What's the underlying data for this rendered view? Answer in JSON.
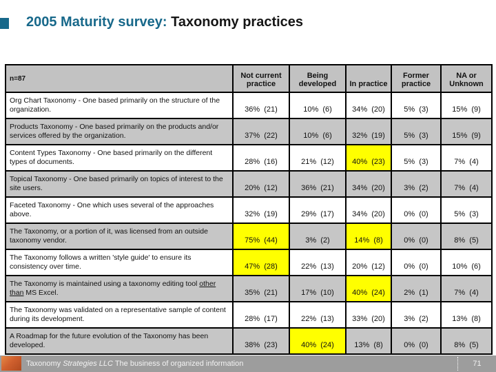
{
  "colors": {
    "accent_teal": "#17688a",
    "header_gray": "#c2c2c2",
    "row_gray": "#c6c6c6",
    "hl_yellow": "#ffff00",
    "footer_gray": "#9d9d9d",
    "logo_orange": "#d0602e"
  },
  "title": {
    "highlight": "2005 Maturity survey:",
    "rest": " Taxonomy practices"
  },
  "table": {
    "corner_label": "n=87",
    "columns": [
      "Not current practice",
      "Being developed",
      "In practice",
      "Former practice",
      "NA or Unknown"
    ],
    "rows": [
      {
        "question": "Org Chart Taxonomy - One based primarily on the structure of the organization.",
        "cells": [
          {
            "pct": 36,
            "n": 21,
            "hl": false
          },
          {
            "pct": 10,
            "n": 6,
            "hl": false
          },
          {
            "pct": 34,
            "n": 20,
            "hl": false
          },
          {
            "pct": 5,
            "n": 3,
            "hl": false
          },
          {
            "pct": 15,
            "n": 9,
            "hl": false
          }
        ]
      },
      {
        "question": "Products Taxonomy - One based primarily on the products and/or services offered by the organization.",
        "cells": [
          {
            "pct": 37,
            "n": 22,
            "hl": false
          },
          {
            "pct": 10,
            "n": 6,
            "hl": false
          },
          {
            "pct": 32,
            "n": 19,
            "hl": false
          },
          {
            "pct": 5,
            "n": 3,
            "hl": false
          },
          {
            "pct": 15,
            "n": 9,
            "hl": false
          }
        ]
      },
      {
        "question": "Content Types Taxonomy - One based primarily on the different types of documents.",
        "cells": [
          {
            "pct": 28,
            "n": 16,
            "hl": false
          },
          {
            "pct": 21,
            "n": 12,
            "hl": false
          },
          {
            "pct": 40,
            "n": 23,
            "hl": true
          },
          {
            "pct": 5,
            "n": 3,
            "hl": false
          },
          {
            "pct": 7,
            "n": 4,
            "hl": false
          }
        ]
      },
      {
        "question": "Topical Taxonomy - One based primarily on topics of interest to the site users.",
        "cells": [
          {
            "pct": 20,
            "n": 12,
            "hl": false
          },
          {
            "pct": 36,
            "n": 21,
            "hl": false
          },
          {
            "pct": 34,
            "n": 20,
            "hl": false
          },
          {
            "pct": 3,
            "n": 2,
            "hl": false
          },
          {
            "pct": 7,
            "n": 4,
            "hl": false
          }
        ]
      },
      {
        "question": "Faceted Taxonomy - One which uses several of the approaches above.",
        "cells": [
          {
            "pct": 32,
            "n": 19,
            "hl": false
          },
          {
            "pct": 29,
            "n": 17,
            "hl": false
          },
          {
            "pct": 34,
            "n": 20,
            "hl": false
          },
          {
            "pct": 0,
            "n": 0,
            "hl": false
          },
          {
            "pct": 5,
            "n": 3,
            "hl": false
          }
        ]
      },
      {
        "question": "The Taxonomy, or a portion of it, was licensed from an outside taxonomy vendor.",
        "cells": [
          {
            "pct": 75,
            "n": 44,
            "hl": true
          },
          {
            "pct": 3,
            "n": 2,
            "hl": false
          },
          {
            "pct": 14,
            "n": 8,
            "hl": true
          },
          {
            "pct": 0,
            "n": 0,
            "hl": false
          },
          {
            "pct": 8,
            "n": 5,
            "hl": false
          }
        ]
      },
      {
        "question": "The Taxonomy follows a written 'style guide' to ensure its consistency over time.",
        "cells": [
          {
            "pct": 47,
            "n": 28,
            "hl": true
          },
          {
            "pct": 22,
            "n": 13,
            "hl": false
          },
          {
            "pct": 20,
            "n": 12,
            "hl": false
          },
          {
            "pct": 0,
            "n": 0,
            "hl": false
          },
          {
            "pct": 10,
            "n": 6,
            "hl": false
          }
        ]
      },
      {
        "question": "The Taxonomy is maintained using a taxonomy editing tool other than MS Excel.",
        "underline": "other than",
        "cells": [
          {
            "pct": 35,
            "n": 21,
            "hl": false
          },
          {
            "pct": 17,
            "n": 10,
            "hl": false
          },
          {
            "pct": 40,
            "n": 24,
            "hl": true
          },
          {
            "pct": 2,
            "n": 1,
            "hl": false
          },
          {
            "pct": 7,
            "n": 4,
            "hl": false
          }
        ]
      },
      {
        "question": "The Taxonomy was validated on a representative sample of content during its development.",
        "cells": [
          {
            "pct": 28,
            "n": 17,
            "hl": false
          },
          {
            "pct": 22,
            "n": 13,
            "hl": false
          },
          {
            "pct": 33,
            "n": 20,
            "hl": false
          },
          {
            "pct": 3,
            "n": 2,
            "hl": false
          },
          {
            "pct": 13,
            "n": 8,
            "hl": false
          }
        ]
      },
      {
        "question": "A Roadmap for the future evolution of the Taxonomy has been developed.",
        "cells": [
          {
            "pct": 38,
            "n": 23,
            "hl": false
          },
          {
            "pct": 40,
            "n": 24,
            "hl": true
          },
          {
            "pct": 13,
            "n": 8,
            "hl": false
          },
          {
            "pct": 0,
            "n": 0,
            "hl": false
          },
          {
            "pct": 8,
            "n": 5,
            "hl": false
          }
        ]
      }
    ]
  },
  "footer": {
    "brand": "Taxonomy ",
    "brand_italic": "Strategies LLC",
    "tagline": "  The business of organized information",
    "page_number": "71"
  }
}
